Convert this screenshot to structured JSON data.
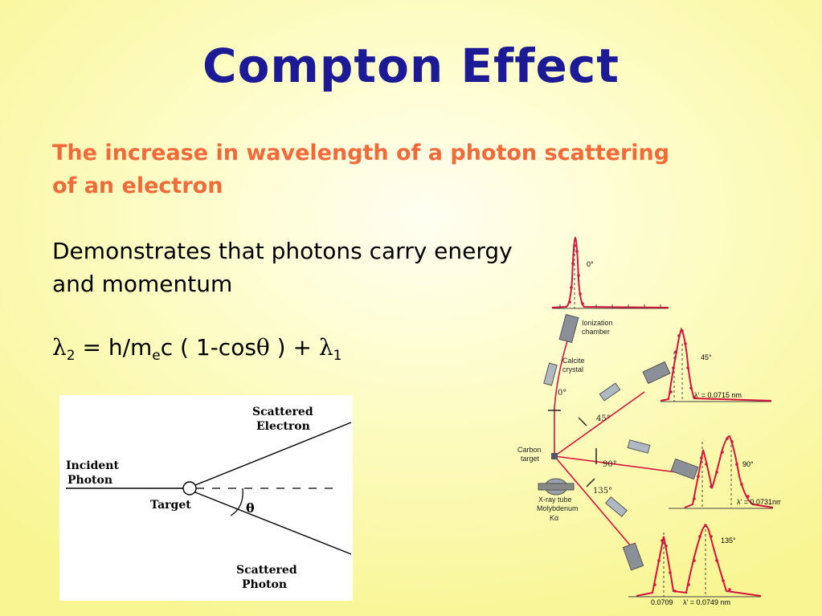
{
  "slide": {
    "title": "Compton Effect",
    "subtitle": "The increase in wavelength of a  photon scattering of an electron",
    "body": "Demonstrates that photons carry energy and momentum",
    "formula": {
      "lambda2": "λ",
      "sub2": "2",
      "equals_part": " = h/m",
      "sub_e": "e",
      "c_part": "c ( 1-cos",
      "theta": "θ",
      "tail": " ) + ",
      "lambda1": "λ",
      "sub1": "1"
    }
  },
  "diagram_left": {
    "incident_line1": "Incident",
    "incident_line2": "Photon",
    "target": "Target",
    "angle": "θ",
    "electron_line1": "Scattered",
    "electron_line2": "Electron",
    "photon_line1": "Scattered",
    "photon_line2": "Photon"
  },
  "diagram_right": {
    "ionization_line1": "Ionization",
    "ionization_line2": "chamber",
    "calcite_line1": "Calcite",
    "calcite_line2": "crystal",
    "carbon_line1": "Carbon",
    "carbon_line2": "target",
    "xray_line1": "X-ray tube",
    "xray_line2": "Molybdenum",
    "xray_line3": "Kα",
    "angle_0": "0°",
    "angle_45": "45°",
    "angle_90": "90°",
    "angle_135": "135°",
    "plot_0_label": "0°",
    "plot_45_label": "45°",
    "plot_90_label": "90°",
    "plot_135_label": "135°",
    "lambda_45": "λ' = 0.0715 nm",
    "lambda_90": "λ' = 0.0731nm",
    "lambda_135": "λ' = 0.0749 nm",
    "lambda_0_value": "0.0709"
  }
}
